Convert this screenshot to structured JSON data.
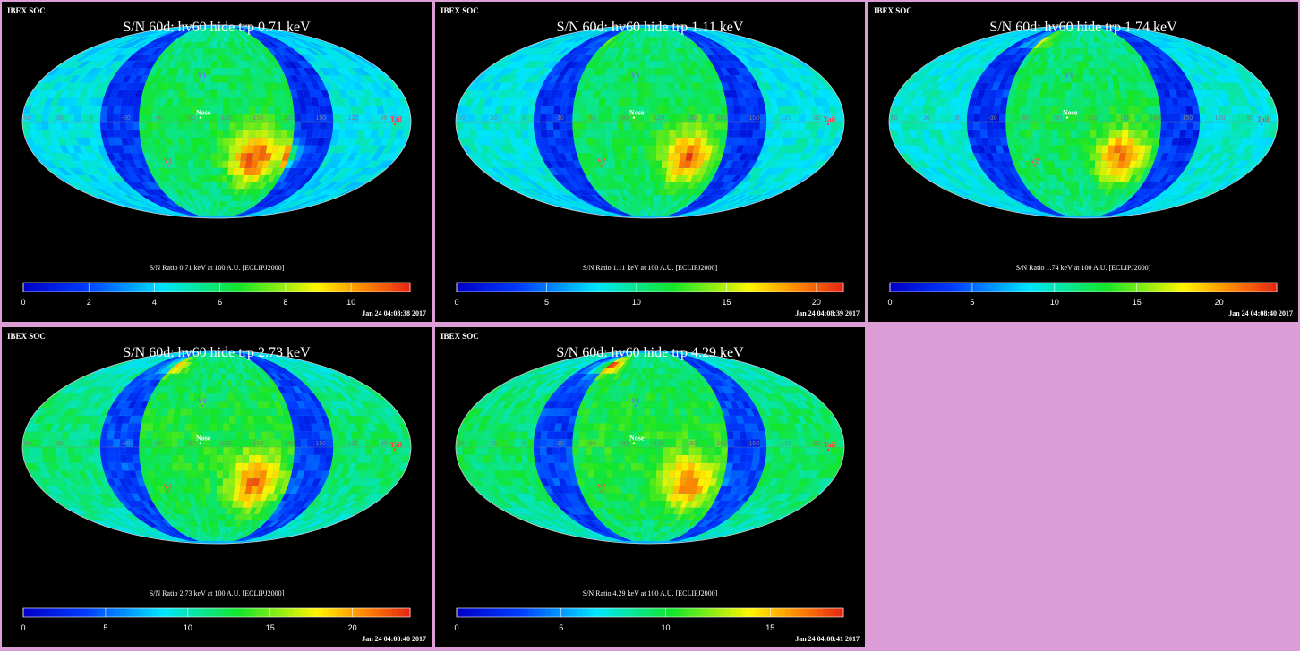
{
  "chart_data": [
    {
      "type": "heatmap",
      "source": "IBEX SOC",
      "title": "S/N  60d: hv60 hide trp 0.71 keV",
      "colorbar_title": "S/N Ratio 0.71 keV at 100 A.U. [ECLIPJ2000]",
      "colorbar_ticks": [
        "0",
        "2",
        "4",
        "6",
        "8",
        "10"
      ],
      "colorbar_range": [
        0,
        11.8
      ],
      "timestamp": "Jan 24 04:08:38 2017",
      "grid_labels": [
        "60",
        "30",
        "0",
        "-30",
        "-60",
        "-90",
        "-120",
        "-150",
        "180",
        "150",
        "120",
        "90"
      ],
      "markers": [
        {
          "name": "V1",
          "lon": -105,
          "lat": 34
        },
        {
          "name": "V2",
          "lon": -70,
          "lat": -32
        },
        {
          "name": "Nose",
          "lon": -105,
          "lat": 5
        },
        {
          "name": "Tail",
          "lon": 75,
          "lat": 0
        }
      ]
    },
    {
      "type": "heatmap",
      "source": "IBEX SOC",
      "title": "S/N  60d: hv60 hide trp 1.11 keV",
      "colorbar_title": "S/N Ratio 1.11 keV at 100 A.U. [ECLIPJ2000]",
      "colorbar_ticks": [
        "0",
        "5",
        "10",
        "15",
        "20"
      ],
      "colorbar_range": [
        0,
        21.5
      ],
      "timestamp": "Jan 24 04:08:39 2017",
      "grid_labels": [
        "60",
        "30",
        "0",
        "-30",
        "-60",
        "-90",
        "-120",
        "-150",
        "180",
        "150",
        "120",
        "90"
      ],
      "markers": [
        {
          "name": "V1",
          "lon": -105,
          "lat": 34
        },
        {
          "name": "V2",
          "lon": -70,
          "lat": -32
        },
        {
          "name": "Nose",
          "lon": -105,
          "lat": 5
        },
        {
          "name": "Tail",
          "lon": 75,
          "lat": 0
        }
      ]
    },
    {
      "type": "heatmap",
      "source": "IBEX SOC",
      "title": "S/N  60d: hv60 hide trp 1.74 keV",
      "colorbar_title": "S/N Ratio 1.74 keV at 100 A.U. [ECLIPJ2000]",
      "colorbar_ticks": [
        "0",
        "5",
        "10",
        "15",
        "20"
      ],
      "colorbar_range": [
        0,
        23.5
      ],
      "timestamp": "Jan 24 04:08:40 2017",
      "grid_labels": [
        "60",
        "30",
        "0",
        "-30",
        "-60",
        "-90",
        "-120",
        "-150",
        "180",
        "150",
        "120",
        "90"
      ],
      "markers": [
        {
          "name": "V1",
          "lon": -105,
          "lat": 34
        },
        {
          "name": "V2",
          "lon": -70,
          "lat": -32
        },
        {
          "name": "Nose",
          "lon": -105,
          "lat": 5
        },
        {
          "name": "Tail",
          "lon": 75,
          "lat": 0
        }
      ]
    },
    {
      "type": "heatmap",
      "source": "IBEX SOC",
      "title": "S/N  60d: hv60 hide trp 2.73 keV",
      "colorbar_title": "S/N Ratio 2.73 keV at 100 A.U. [ECLIPJ2000]",
      "colorbar_ticks": [
        "0",
        "5",
        "10",
        "15",
        "20"
      ],
      "colorbar_range": [
        0,
        23.5
      ],
      "timestamp": "Jan 24 04:08:40 2017",
      "grid_labels": [
        "60",
        "30",
        "0",
        "-30",
        "-60",
        "-90",
        "-120",
        "-150",
        "180",
        "150",
        "120",
        "90"
      ],
      "markers": [
        {
          "name": "V1",
          "lon": -105,
          "lat": 34
        },
        {
          "name": "V2",
          "lon": -70,
          "lat": -32
        },
        {
          "name": "Nose",
          "lon": -105,
          "lat": 5
        },
        {
          "name": "Tail",
          "lon": 75,
          "lat": 0
        }
      ]
    },
    {
      "type": "heatmap",
      "source": "IBEX SOC",
      "title": "S/N  60d: hv60 hide trp 4.29 keV",
      "colorbar_title": "S/N Ratio 4.29 keV at 100 A.U. [ECLIPJ2000]",
      "colorbar_ticks": [
        "0",
        "5",
        "10",
        "15"
      ],
      "colorbar_range": [
        0,
        18.5
      ],
      "timestamp": "Jan 24 04:08:41 2017",
      "grid_labels": [
        "60",
        "30",
        "0",
        "-30",
        "-60",
        "-90",
        "-120",
        "-150",
        "180",
        "150",
        "120",
        "90"
      ],
      "markers": [
        {
          "name": "V1",
          "lon": -105,
          "lat": 34
        },
        {
          "name": "V2",
          "lon": -70,
          "lat": -32
        },
        {
          "name": "Nose",
          "lon": -105,
          "lat": 5
        },
        {
          "name": "Tail",
          "lon": 75,
          "lat": 0
        }
      ]
    }
  ]
}
